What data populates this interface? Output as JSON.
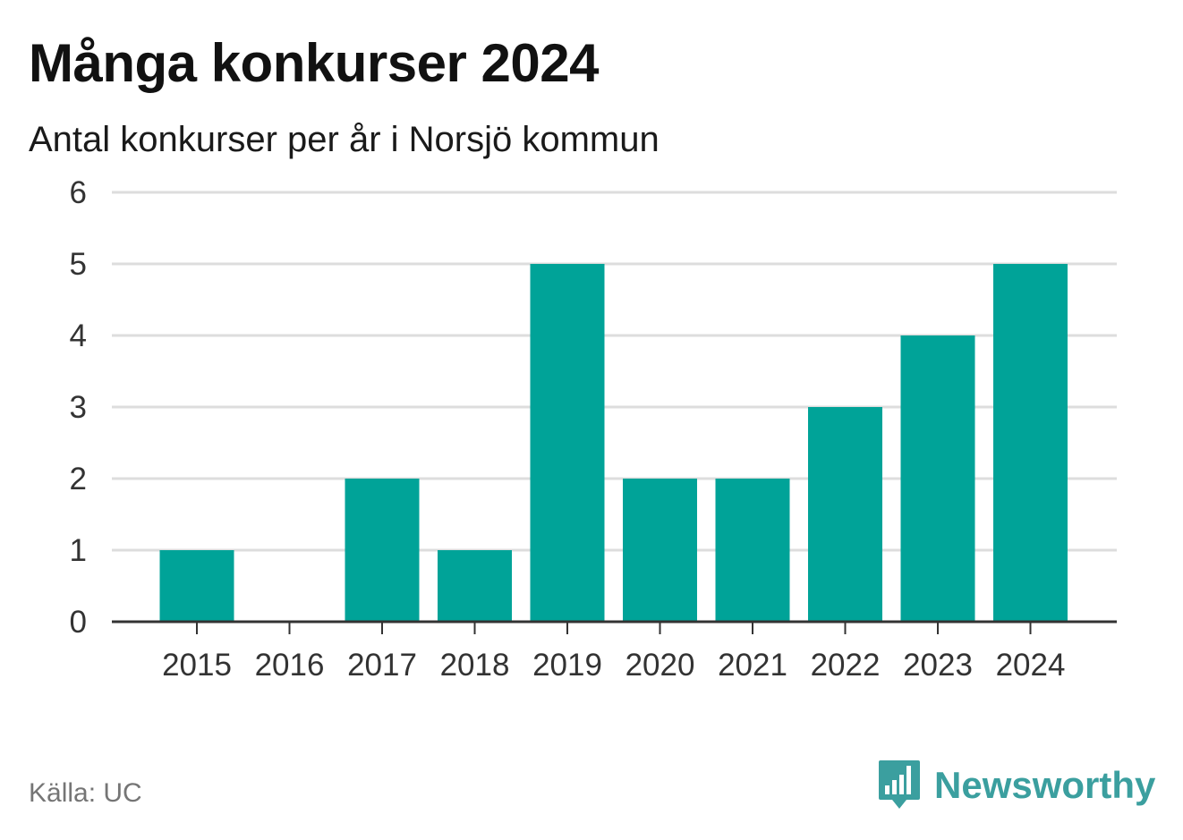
{
  "title": "Många konkurser 2024",
  "subtitle": "Antal konkurser per år i Norsjö kommun",
  "source": "Källa: UC",
  "brand": {
    "name": "Newsworthy",
    "icon": "bar-chart-speech-bubble-icon",
    "color": "#3b9f9f"
  },
  "colors": {
    "bar": "#00a398",
    "grid": "#dddddd",
    "axis": "#333333"
  },
  "chart_data": {
    "type": "bar",
    "title": "Många konkurser 2024",
    "subtitle": "Antal konkurser per år i Norsjö kommun",
    "categories": [
      "2015",
      "2016",
      "2017",
      "2018",
      "2019",
      "2020",
      "2021",
      "2022",
      "2023",
      "2024"
    ],
    "values": [
      1,
      0,
      2,
      1,
      5,
      2,
      2,
      3,
      4,
      5
    ],
    "yticks": [
      "0",
      "1",
      "2",
      "3",
      "4",
      "5",
      "6"
    ],
    "ylim": [
      0,
      6
    ],
    "xlabel": "",
    "ylabel": "",
    "grid": true,
    "legend": "none"
  }
}
